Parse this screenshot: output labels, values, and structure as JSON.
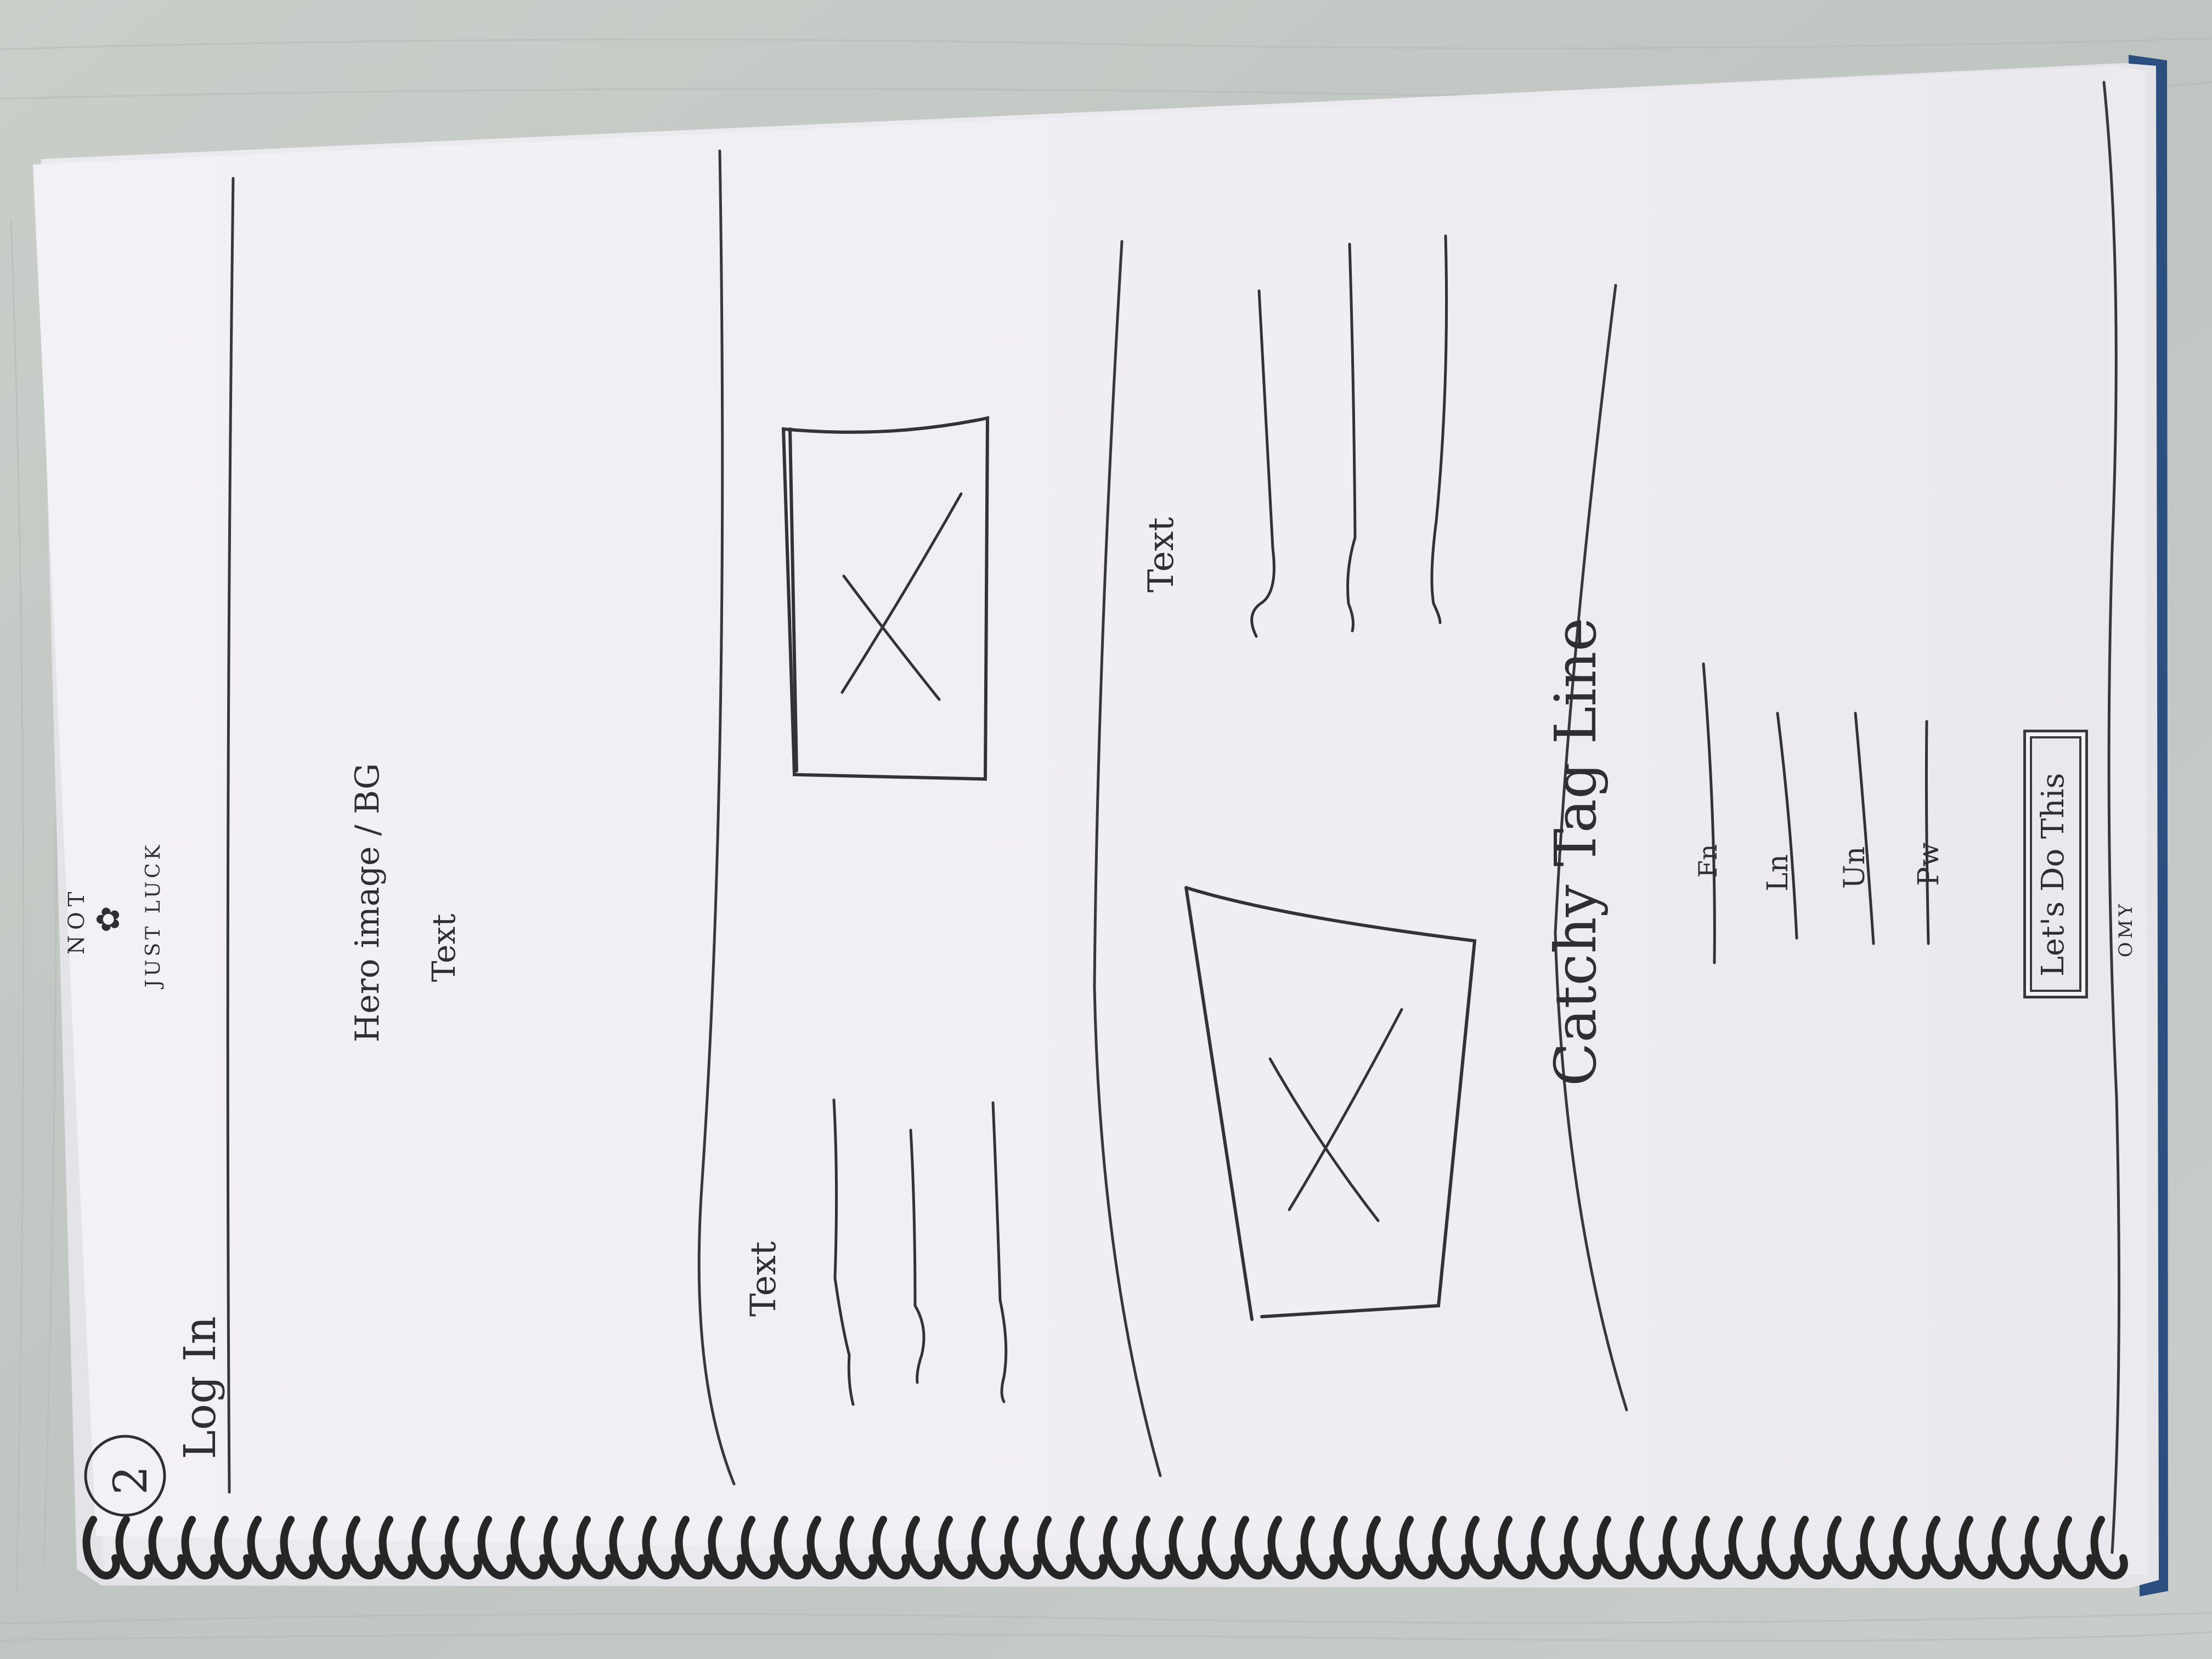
{
  "page_number": "2",
  "header": {
    "logo_caption_top": "NOT",
    "logo_caption_bottom": "JUST LUCK",
    "login_label": "Log In"
  },
  "hero": {
    "title": "Hero image / BG",
    "subtitle": "Text"
  },
  "feature_1": {
    "text_label": "Text",
    "image_placeholder_icon": "x-image-placeholder-icon"
  },
  "feature_2": {
    "text_label": "Text",
    "image_placeholder_icon": "x-image-placeholder-icon"
  },
  "signup": {
    "tagline": "Catchy Tag Line",
    "fields": [
      {
        "label": "Fn"
      },
      {
        "label": "Ln"
      },
      {
        "label": "Un"
      },
      {
        "label": "Pw"
      }
    ],
    "submit_label": "Let's Do This"
  },
  "footer": {
    "logo_text": "OMY"
  },
  "colors": {
    "paper": "#f4f3f6",
    "table": "#c6cbc8",
    "pencil": "#3a3a3e",
    "spiral": "#2b2b2b",
    "cover_blue": "#2b4f7f"
  }
}
